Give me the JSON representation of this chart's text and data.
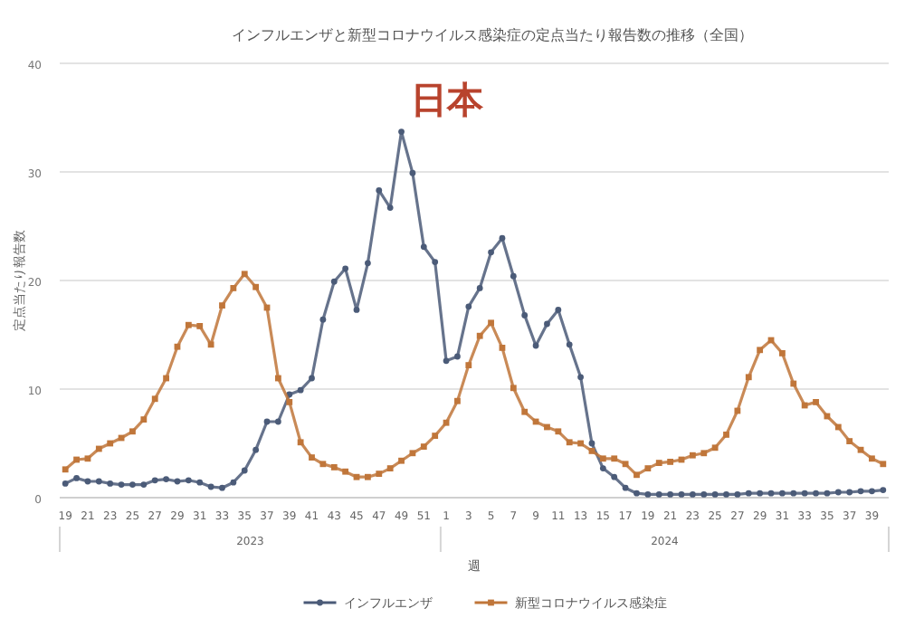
{
  "chart_data": {
    "type": "line",
    "title": "インフルエンザと新型コロナウイルス感染症の定点当たり報告数の推移（全国）",
    "subtitle": "日本",
    "xlabel": "週",
    "ylabel": "定点当たり報告数",
    "categories": [
      "19",
      null,
      "21",
      null,
      "23",
      null,
      "25",
      null,
      "27",
      null,
      "29",
      null,
      "31",
      null,
      "33",
      null,
      "35",
      null,
      "37",
      null,
      "39",
      null,
      "41",
      null,
      "43",
      null,
      "45",
      null,
      "47",
      null,
      "49",
      null,
      "51",
      null,
      "1",
      null,
      "3",
      null,
      "5",
      null,
      "7",
      null,
      "9",
      null,
      "11",
      null,
      "13",
      null,
      "15",
      null,
      "17",
      null,
      "19",
      null,
      "21",
      null,
      "23",
      null,
      "25",
      null,
      "27",
      null,
      "29",
      null,
      "31",
      null,
      "33",
      null,
      "35",
      null,
      "37",
      null,
      "39",
      null
    ],
    "series": [
      {
        "name": "インフルエンザ",
        "color": "#4b5b78",
        "marker": "circle",
        "values": [
          1.3,
          1.8,
          1.5,
          1.5,
          1.3,
          1.2,
          1.2,
          1.2,
          1.6,
          1.7,
          1.5,
          1.6,
          1.4,
          1.0,
          0.9,
          1.4,
          2.5,
          4.4,
          7.0,
          7.0,
          9.5,
          9.9,
          11.0,
          16.4,
          19.9,
          21.1,
          17.3,
          21.6,
          28.3,
          26.7,
          33.7,
          29.9,
          23.1,
          21.7,
          12.6,
          13.0,
          17.6,
          19.3,
          22.6,
          23.9,
          20.4,
          16.8,
          14.0,
          16.0,
          17.3,
          14.1,
          11.1,
          5.0,
          2.7,
          1.9,
          0.9,
          0.4,
          0.3,
          0.3,
          0.3,
          0.3,
          0.3,
          0.3,
          0.3,
          0.3,
          0.3,
          0.4,
          0.4,
          0.4,
          0.4,
          0.4,
          0.4,
          0.4,
          0.4,
          0.5,
          0.5,
          0.6,
          0.6,
          0.7
        ]
      },
      {
        "name": "新型コロナウイルス感染症",
        "color": "#c0763a",
        "marker": "square",
        "values": [
          2.6,
          3.5,
          3.6,
          4.5,
          5.0,
          5.5,
          6.1,
          7.2,
          9.1,
          11.0,
          13.9,
          15.9,
          15.8,
          14.1,
          17.7,
          19.3,
          20.6,
          19.4,
          17.5,
          11.0,
          8.8,
          5.1,
          3.7,
          3.1,
          2.8,
          2.4,
          1.9,
          1.9,
          2.2,
          2.7,
          3.4,
          4.1,
          4.7,
          5.7,
          6.9,
          8.9,
          12.2,
          14.9,
          16.1,
          13.8,
          10.1,
          7.9,
          7.0,
          6.5,
          6.1,
          5.1,
          5.0,
          4.3,
          3.6,
          3.6,
          3.1,
          2.1,
          2.7,
          3.2,
          3.3,
          3.5,
          3.9,
          4.1,
          4.6,
          5.8,
          8.0,
          11.1,
          13.6,
          14.5,
          13.3,
          10.5,
          8.5,
          8.8,
          7.5,
          6.5,
          5.2,
          4.4,
          3.6,
          3.1
        ]
      }
    ],
    "ylim": [
      0,
      40
    ],
    "yticks": [
      0,
      10,
      20,
      30,
      40
    ],
    "grid": "y",
    "legend": "bottom",
    "line_style": "solid",
    "annotations": [
      "2023",
      "2024"
    ]
  }
}
